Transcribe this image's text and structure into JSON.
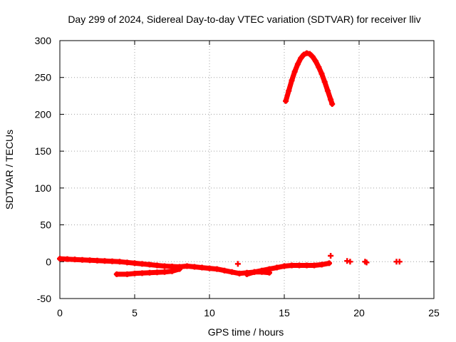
{
  "chart_data": {
    "type": "scatter",
    "title": "Day 299 of 2024, Sidereal Day-to-day VTEC variation (SDTVAR) for receiver lliv",
    "xlabel": "GPS time / hours",
    "ylabel": "SDTVAR / TECUs",
    "xlim": [
      0,
      25
    ],
    "ylim": [
      -50,
      300
    ],
    "xticks": [
      0,
      5,
      10,
      15,
      20,
      25
    ],
    "yticks": [
      -50,
      0,
      50,
      100,
      150,
      200,
      250,
      300
    ],
    "xtick_labels": [
      "0",
      "5",
      "10",
      "15",
      "20",
      "25"
    ],
    "ytick_labels": [
      "-50",
      "0",
      "50",
      "100",
      "150",
      "200",
      "250",
      "300"
    ],
    "grid": true,
    "legend": "none",
    "colors": {
      "series": "#ff0000",
      "grid": "#a0a0a0",
      "axis": "#000000"
    },
    "series": [
      {
        "x": [
          0.0,
          0.5,
          1.0,
          1.5,
          2.0,
          2.5,
          3.0,
          3.5,
          4.0,
          4.5,
          5.0,
          5.5,
          6.0,
          6.5,
          7.0,
          7.5,
          8.0,
          8.5,
          9.0,
          9.5,
          10.0,
          10.5,
          11.0,
          11.5,
          12.0,
          12.5,
          13.0,
          13.5,
          14.0,
          14.5,
          15.0,
          15.5,
          16.0,
          16.5,
          17.0,
          17.5,
          18.0
        ],
        "y": [
          4,
          3.5,
          3,
          2.5,
          2,
          1.5,
          1,
          0.5,
          0,
          -1,
          -2,
          -3,
          -4,
          -5,
          -6,
          -6.5,
          -7,
          -6,
          -7,
          -8,
          -9,
          -10,
          -12,
          -14,
          -16,
          -15,
          -14,
          -12,
          -10,
          -8,
          -6,
          -5,
          -5,
          -5,
          -5,
          -4,
          -2
        ]
      },
      {
        "x": [
          3.8,
          4.5,
          5.0,
          5.5,
          6.0,
          6.5,
          7.0,
          7.5,
          8.0
        ],
        "y": [
          -17,
          -17,
          -16,
          -15.5,
          -15,
          -14.5,
          -14,
          -13,
          -10
        ]
      },
      {
        "x": [
          12.5,
          13.0,
          13.5,
          14.0
        ],
        "y": [
          -17,
          -14,
          -14,
          -15
        ]
      },
      {
        "x": [
          15.1,
          15.3,
          15.5,
          15.7,
          15.9,
          16.1,
          16.3,
          16.5,
          16.7,
          16.9,
          17.1,
          17.3,
          17.5,
          17.7,
          17.9,
          18.1,
          18.2
        ],
        "y": [
          218,
          232,
          246,
          258,
          268,
          276,
          281,
          283,
          282,
          278,
          272,
          264,
          255,
          244,
          232,
          220,
          214
        ]
      },
      {
        "x": [
          11.9,
          18.1,
          19.2,
          19.4,
          20.4,
          20.5,
          22.5,
          22.7
        ],
        "y": [
          -3,
          8,
          1,
          0,
          0,
          -1,
          0,
          0
        ]
      }
    ]
  }
}
